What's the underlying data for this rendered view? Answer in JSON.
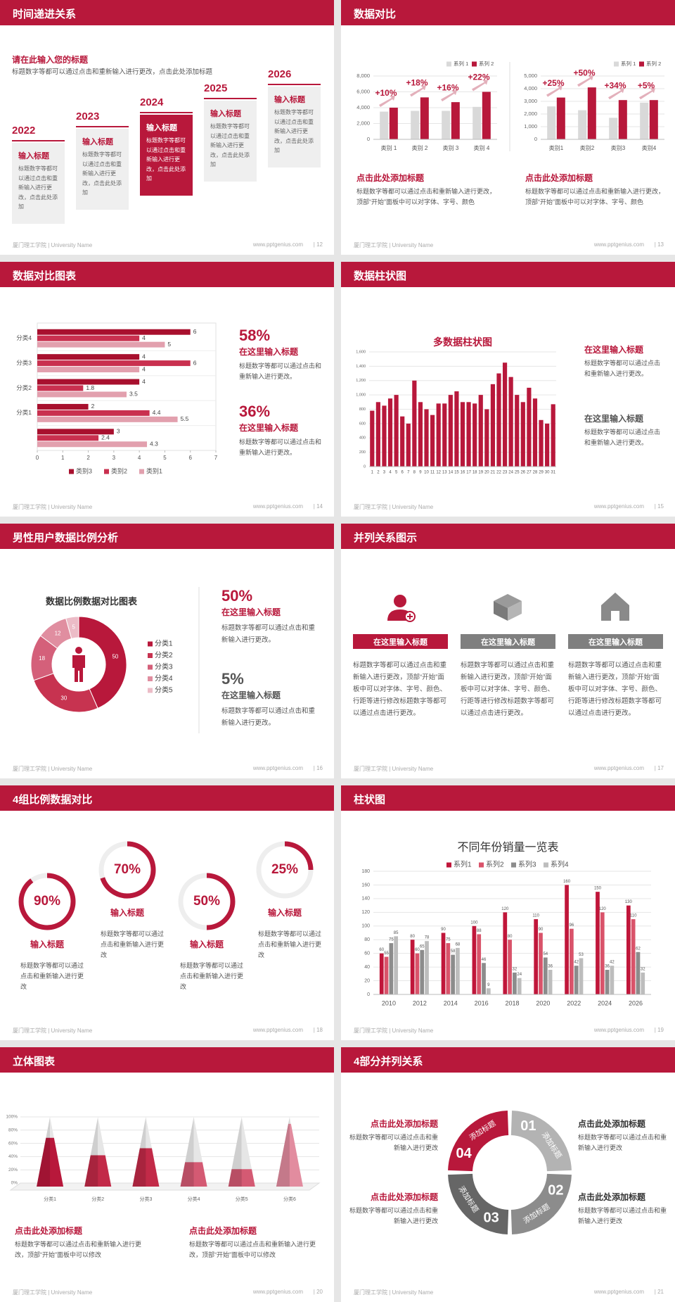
{
  "slides": [
    {
      "title": "时间递进关系",
      "footer_left": "厦门理工学院 | University Name",
      "footer_url": "www.pptgenius.com",
      "page": "| 12",
      "intro": {
        "heading": "请在此输入您的标题",
        "text": "标题数字等都可以通过点击和重新输入进行更改，点击此处添加标题"
      },
      "items": [
        {
          "year": "2022",
          "heading": "输入标题",
          "text": "标题数字等都可以通过点击和重新输入进行更改，点击此处添加"
        },
        {
          "year": "2023",
          "heading": "输入标题",
          "text": "标题数字等都可以通过点击和重新输入进行更改，点击此处添加"
        },
        {
          "year": "2024",
          "heading": "输入标题",
          "text": "标题数字等都可以通过点击和重新输入进行更改，点击此处添加"
        },
        {
          "year": "2025",
          "heading": "输入标题",
          "text": "标题数字等都可以通过点击和重新输入进行更改，点击此处添加"
        },
        {
          "year": "2026",
          "heading": "输入标题",
          "text": "标题数字等都可以通过点击和重新输入进行更改，点击此处添加"
        }
      ]
    },
    {
      "title": "数据对比",
      "footer_left": "厦门理工学院 | University Name",
      "footer_url": "www.pptgenius.com",
      "page": "| 13",
      "charts": [
        {
          "type": "bar",
          "categories": [
            "类别 1",
            "类别 2",
            "类别 3",
            "类别 4"
          ],
          "series": [
            {
              "name": "系列 1",
              "color": "#d9d9d9",
              "values": [
                3500,
                3600,
                3600,
                4100
              ]
            },
            {
              "name": "系列 2",
              "color": "#b8183b",
              "values": [
                4000,
                5300,
                4700,
                6000
              ]
            }
          ],
          "ylim": [
            0,
            8000
          ],
          "yticks": [
            0,
            {
              "value": 2000,
              "label": "2,000"
            },
            {
              "value": 4000,
              "label": "4,000"
            },
            {
              "value": 6000,
              "label": "6,000"
            },
            {
              "value": 8000,
              "label": "8,000"
            }
          ],
          "annotations": [
            "+10%",
            "+18%",
            "+16%",
            "+22%"
          ]
        },
        {
          "type": "bar",
          "categories": [
            "类别1",
            "类别2",
            "类别3",
            "类别4"
          ],
          "series": [
            {
              "name": "系列 1",
              "color": "#d9d9d9",
              "values": [
                2600,
                2300,
                1700,
                2900
              ]
            },
            {
              "name": "系列 2",
              "color": "#b8183b",
              "values": [
                3300,
                4100,
                3100,
                3100
              ]
            }
          ],
          "ylim": [
            0,
            5000
          ],
          "yticks": [
            0,
            {
              "value": 1000,
              "label": "1,000"
            },
            {
              "value": 2000,
              "label": "2,000"
            },
            {
              "value": 3000,
              "label": "3,000"
            },
            {
              "value": 4000,
              "label": "4,000"
            },
            {
              "value": 5000,
              "label": "5,000"
            }
          ],
          "annotations": [
            "+25%",
            "+50%",
            "+34%",
            "+5%"
          ]
        }
      ],
      "notes": [
        {
          "heading": "点击此处添加标题",
          "text": "标题数字等都可以通过点击和重新输入进行更改，顶部“开始”面板中可以对字体、字号、颜色"
        },
        {
          "heading": "点击此处添加标题",
          "text": "标题数字等都可以通过点击和重新输入进行更改，顶部“开始”面板中可以对字体、字号、颜色"
        }
      ]
    },
    {
      "title": "数据对比图表",
      "footer_left": "厦门理工学院 | University Name",
      "footer_url": "www.pptgenius.com",
      "page": "| 14",
      "chart": {
        "type": "hbar",
        "categories": [
          null,
          "分类1",
          "分类2",
          "分类3",
          "分类4"
        ],
        "series": [
          {
            "name": "类别3",
            "color": "#a8102e",
            "values": [
              3,
              2,
              4,
              4,
              6
            ]
          },
          {
            "name": "类别2",
            "color": "#c9304f",
            "values": [
              2.4,
              4.4,
              1.8,
              6,
              4
            ]
          },
          {
            "name": "类别1",
            "color": "#e2a0ae",
            "values": [
              4.3,
              5.5,
              3.5,
              4,
              5
            ]
          }
        ],
        "xlim": [
          0,
          7
        ],
        "xticks": [
          0,
          1,
          2,
          3,
          4,
          5,
          6,
          7
        ]
      },
      "stats": [
        {
          "value": "58%",
          "heading": "在这里输入标题",
          "text": "标题数字等都可以通过点击和重新输入进行更改。"
        },
        {
          "value": "36%",
          "heading": "在这里输入标题",
          "text": "标题数字等都可以通过点击和重新输入进行更改。"
        }
      ]
    },
    {
      "title": "数据柱状图",
      "footer_left": "厦门理工学院 | University Name",
      "footer_url": "www.pptgenius.com",
      "page": "| 15",
      "chart": {
        "type": "bar",
        "title": "多数据柱状图",
        "color": "#b8183b",
        "categories": [
          "1",
          "2",
          "3",
          "4",
          "5",
          "6",
          "7",
          "8",
          "9",
          "10",
          "11",
          "12",
          "13",
          "14",
          "15",
          "16",
          "17",
          "18",
          "19",
          "20",
          "21",
          "22",
          "23",
          "24",
          "25",
          "26",
          "27",
          "28",
          "29",
          "30",
          "31"
        ],
        "values": [
          780,
          900,
          850,
          950,
          1000,
          700,
          600,
          1200,
          900,
          800,
          720,
          880,
          880,
          1000,
          1050,
          900,
          900,
          880,
          1000,
          800,
          1150,
          1300,
          1450,
          1250,
          1000,
          900,
          1100,
          950,
          650,
          600,
          870
        ],
        "ylim": [
          0,
          1600
        ],
        "yticks": [
          0,
          200,
          400,
          600,
          800,
          {
            "value": 1000,
            "label": "1,000"
          },
          {
            "value": 1200,
            "label": "1,200"
          },
          {
            "value": 1400,
            "label": "1,400"
          },
          {
            "value": 1600,
            "label": "1,600"
          }
        ]
      },
      "notes": [
        {
          "heading": "在这里输入标题",
          "text": "标题数字等都可以通过点击和重新输入进行更改。"
        },
        {
          "heading": "在这里输入标题",
          "text": "标题数字等都可以通过点击和重新输入进行更改。"
        }
      ]
    },
    {
      "title": "男性用户数据比例分析",
      "footer_left": "厦门理工学院 | University Name",
      "footer_url": "www.pptgenius.com",
      "page": "| 16",
      "chart": {
        "type": "donut",
        "title": "数据比例数据对比图表",
        "categories": [
          "分类1",
          "分类2",
          "分类3",
          "分类4",
          "分类5"
        ],
        "values": [
          50,
          30,
          18,
          12,
          5
        ],
        "colors": [
          "#b8183b",
          "#c73350",
          "#d4607a",
          "#e08ea0",
          "#ecbcc7"
        ]
      },
      "stats": [
        {
          "value": "50%",
          "heading": "在这里输入标题",
          "text": "标题数字等都可以通过点击和重新输入进行更改。"
        },
        {
          "value": "5%",
          "heading": "在这里输入标题",
          "text": "标题数字等都可以通过点击和重新输入进行更改。"
        }
      ]
    },
    {
      "title": "并列关系图示",
      "footer_left": "厦门理工学院 | University Name",
      "footer_url": "www.pptgenius.com",
      "page": "| 17",
      "columns": [
        {
          "heading": "在这里输入标题",
          "text": "标题数字等都可以通过点击和重新输入进行更改，顶部“开始”面板中可以对字体、字号、颜色、行距等进行修改标题数字等都可以通过点击进行更改。"
        },
        {
          "heading": "在这里输入标题",
          "text": "标题数字等都可以通过点击和重新输入进行更改，顶部“开始”面板中可以对字体、字号、颜色、行距等进行修改标题数字等都可以通过点击进行更改。"
        },
        {
          "heading": "在这里输入标题",
          "text": "标题数字等都可以通过点击和重新输入进行更改，顶部“开始”面板中可以对字体、字号、颜色、行距等进行修改标题数字等都可以通过点击进行更改。"
        }
      ]
    },
    {
      "title": "4组比例数据对比",
      "footer_left": "厦门理工学院 | University Name",
      "footer_url": "www.pptgenius.com",
      "page": "| 18",
      "chart": {
        "type": "ring",
        "values": [
          90,
          70,
          50,
          25
        ],
        "value_labels": [
          "90%",
          "70%",
          "50%",
          "25%"
        ],
        "color": "#b8183b"
      },
      "items": [
        {
          "heading": "输入标题",
          "text": "标题数字等都可以通过点击和重新输入进行更改"
        },
        {
          "heading": "输入标题",
          "text": "标题数字等都可以通过点击和重新输入进行更改"
        },
        {
          "heading": "输入标题",
          "text": "标题数字等都可以通过点击和重新输入进行更改"
        },
        {
          "heading": "输入标题",
          "text": "标题数字等都可以通过点击和重新输入进行更改"
        }
      ]
    },
    {
      "title": "柱状图",
      "footer_left": "厦门理工学院 | University Name",
      "footer_url": "www.pptgenius.com",
      "page": "| 19",
      "chart": {
        "type": "bar",
        "title": "不同年份销量一览表",
        "categories": [
          "2010",
          "2012",
          "2014",
          "2016",
          "2018",
          "2020",
          "2022",
          "2024",
          "2026"
        ],
        "series": [
          {
            "name": "系列1",
            "color": "#c0163a",
            "values": [
              60,
              80,
              90,
              100,
              120,
              110,
              160,
              150,
              130
            ]
          },
          {
            "name": "系列2",
            "color": "#d9536a",
            "values": [
              55,
              60,
              75,
              88,
              80,
              90,
              96,
              120,
              110
            ]
          },
          {
            "name": "系列3",
            "color": "#8c8c8c",
            "values": [
              75,
              65,
              58,
              46,
              32,
              54,
              42,
              36,
              62
            ]
          },
          {
            "name": "系列4",
            "color": "#bdbdbd",
            "values": [
              85,
              78,
              68,
              9,
              24,
              36,
              53,
              42,
              32
            ]
          }
        ],
        "ylim": [
          0,
          180
        ],
        "yticks": [
          0,
          20,
          40,
          60,
          80,
          100,
          120,
          140,
          160,
          180
        ]
      }
    },
    {
      "title": "立体图表",
      "footer_left": "厦门理工学院 | University Name",
      "footer_url": "www.pptgenius.com",
      "page": "| 20",
      "chart": {
        "type": "pyramid",
        "categories": [
          "分类1",
          "分类2",
          "分类3",
          "分类4",
          "分类5",
          "分类6"
        ],
        "values": [
          70,
          45,
          55,
          35,
          25,
          90
        ],
        "colors": [
          "#b8183b",
          "#c22a48",
          "#c22a48",
          "#d45a73",
          "#d45a73",
          "#e28c9f"
        ],
        "ylim": [
          0,
          100
        ],
        "yticks": [
          {
            "value": 0,
            "label": "0%"
          },
          {
            "value": 20,
            "label": "20%"
          },
          {
            "value": 40,
            "label": "40%"
          },
          {
            "value": 60,
            "label": "60%"
          },
          {
            "value": 80,
            "label": "80%"
          },
          {
            "value": 100,
            "label": "100%"
          }
        ]
      },
      "notes": [
        {
          "heading": "点击此处添加标题",
          "text": "标题数字等都可以通过点击和重新输入进行更改，顶部“开始”面板中可以修改"
        },
        {
          "heading": "点击此处添加标题",
          "text": "标题数字等都可以通过点击和重新输入进行更改，顶部“开始”面板中可以修改"
        }
      ]
    },
    {
      "title": "4部分并列关系",
      "footer_left": "厦门理工学院 | University Name",
      "footer_url": "www.pptgenius.com",
      "page": "| 21",
      "segments": [
        {
          "number": "01",
          "label": "添加标题"
        },
        {
          "number": "02",
          "label": "添加标题"
        },
        {
          "number": "03",
          "label": "添加标题"
        },
        {
          "number": "04",
          "label": "添加标题"
        }
      ],
      "notes": [
        {
          "heading": "点击此处添加标题",
          "text": "标题数字等都可以通过点击和重新输入进行更改"
        },
        {
          "heading": "点击此处添加标题",
          "text": "标题数字等都可以通过点击和重新输入进行更改"
        },
        {
          "heading": "点击此处添加标题",
          "text": "标题数字等都可以通过点击和重新输入进行更改"
        },
        {
          "heading": "点击此处添加标题",
          "text": "标题数字等都可以通过点击和重新输入进行更改"
        }
      ]
    }
  ]
}
